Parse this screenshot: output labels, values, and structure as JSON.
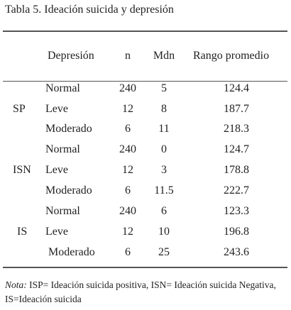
{
  "title": "Tabla 5. Ideación suicida y depresión",
  "headers": {
    "depresion": "Depresión",
    "n": "n",
    "mdn": "Mdn",
    "rango": "Rango promedio"
  },
  "groups": [
    {
      "label": "SP",
      "rows": [
        {
          "dep": "Normal",
          "n": "240",
          "mdn": "5",
          "rango": "124.4"
        },
        {
          "dep": "Leve",
          "n": "12",
          "mdn": "8",
          "rango": "187.7"
        },
        {
          "dep": "Moderado",
          "n": "6",
          "mdn": "11",
          "rango": "218.3"
        }
      ]
    },
    {
      "label": "ISN",
      "rows": [
        {
          "dep": "Normal",
          "n": "240",
          "mdn": "0",
          "rango": "124.7"
        },
        {
          "dep": "Leve",
          "n": "12",
          "mdn": "3",
          "rango": "178.8"
        },
        {
          "dep": "Moderado",
          "n": "6",
          "mdn": "11.5",
          "rango": "222.7"
        }
      ]
    },
    {
      "label": "IS",
      "rows": [
        {
          "dep": "Normal",
          "n": "240",
          "mdn": "6",
          "rango": "123.3"
        },
        {
          "dep": "Leve",
          "n": "12",
          "mdn": "10",
          "rango": "196.8"
        },
        {
          "dep": "Moderado",
          "n": "6",
          "mdn": "25",
          "rango": "243.6"
        }
      ]
    }
  ],
  "note": {
    "label": "Nota:",
    "text": "ISP= Ideación suicida positiva, ISN= Ideación suicida Negativa, IS=Ideación suicida"
  }
}
